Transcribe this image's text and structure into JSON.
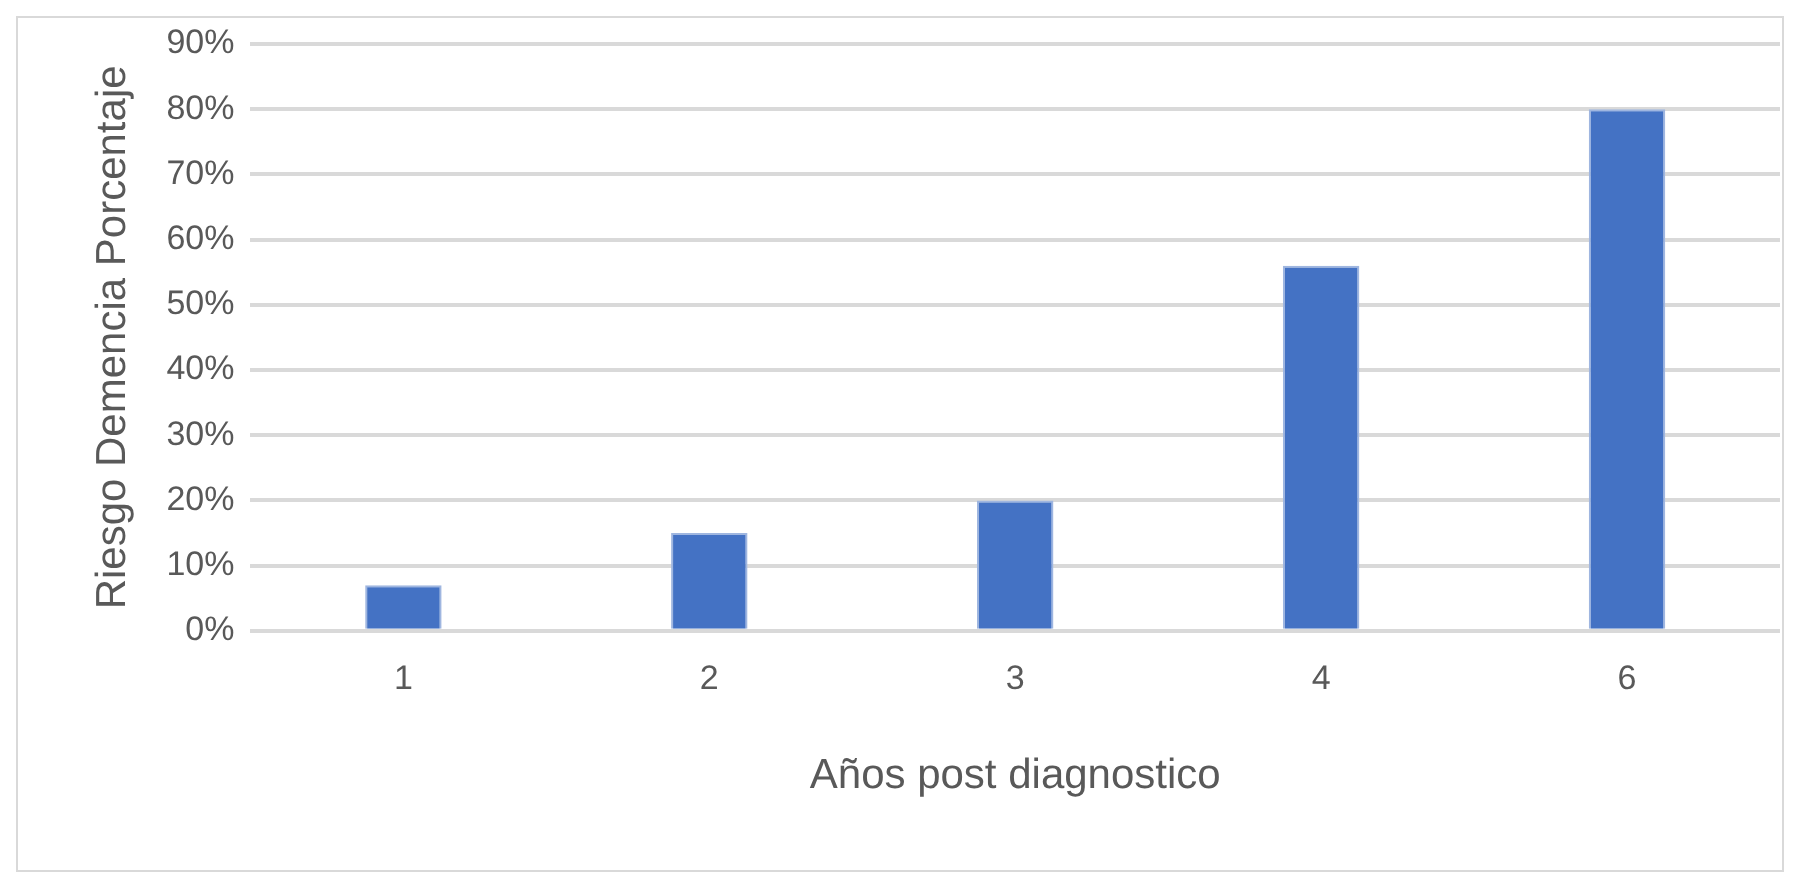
{
  "chart_data": {
    "type": "bar",
    "xlabel": "Años post diagnostico",
    "ylabel": "Riesgo Demencia Porcentaje",
    "categories": [
      "1",
      "2",
      "3",
      "4",
      "6"
    ],
    "values": [
      7,
      15,
      20,
      56,
      80
    ],
    "color": "#4472c4",
    "ylim": [
      0,
      90
    ],
    "yticks": [
      {
        "value": 0,
        "label": "0%"
      },
      {
        "value": 10,
        "label": "10%"
      },
      {
        "value": 20,
        "label": "20%"
      },
      {
        "value": 30,
        "label": "30%"
      },
      {
        "value": 40,
        "label": "40%"
      },
      {
        "value": 50,
        "label": "50%"
      },
      {
        "value": 60,
        "label": "60%"
      },
      {
        "value": 70,
        "label": "70%"
      },
      {
        "value": 80,
        "label": "80%"
      },
      {
        "value": 90,
        "label": "90%"
      }
    ],
    "grid": "y",
    "legend": false
  }
}
